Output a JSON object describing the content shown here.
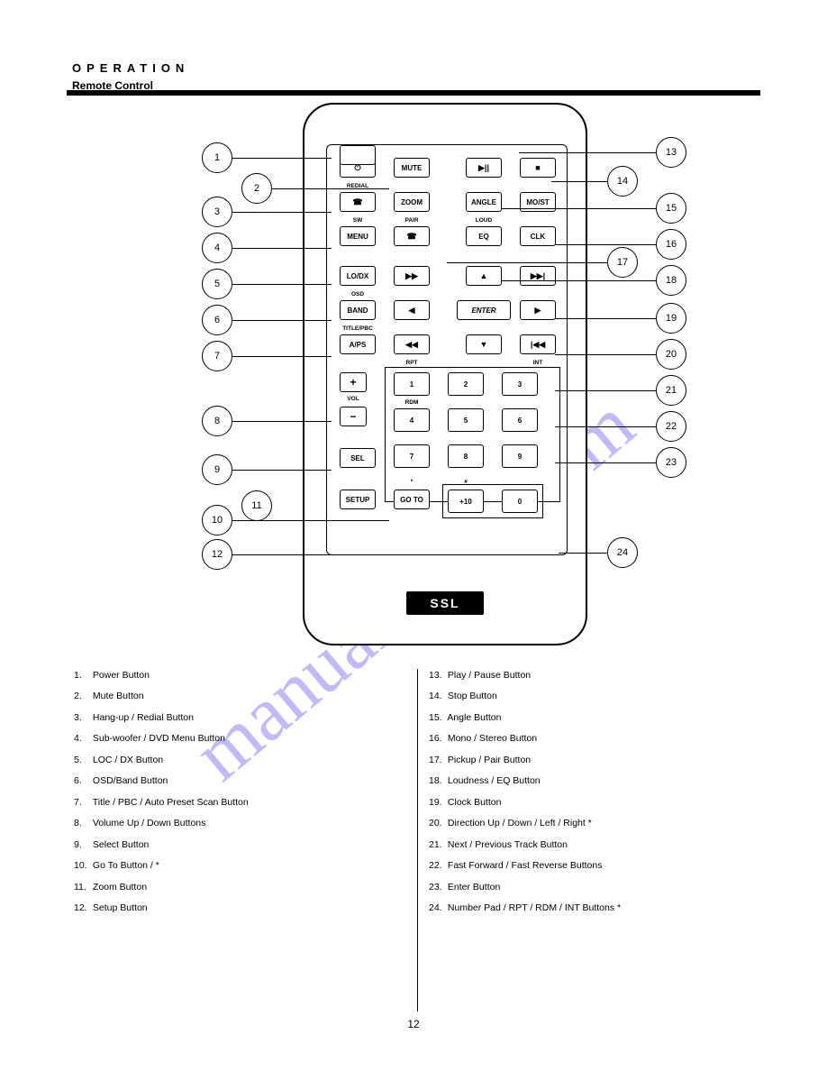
{
  "page": {
    "title": "OPERATION",
    "section": "Remote Control",
    "page_number": "12"
  },
  "watermark": "manualshive.com",
  "brand": "SSL",
  "remote": {
    "buttons": {
      "r1": {
        "power": "⏻",
        "mute": "MUTE",
        "playpause": "▶||",
        "stop": "■"
      },
      "r1_lbl": {
        "redial": "REDIAL"
      },
      "r2": {
        "hang": "☎",
        "zoom": "ZOOM",
        "angle": "ANGLE",
        "most": "MO/ST"
      },
      "r2_lbl": {
        "sw": "SW",
        "pair": "PAIR",
        "loud": "LOUD"
      },
      "r3": {
        "menu": "MENU",
        "pickup": "☎",
        "eq": "EQ",
        "clk": "CLK"
      },
      "r4": {
        "lodx": "LO/DX",
        "ff": "▶▶",
        "up": "▲",
        "next": "▶▶|"
      },
      "r4_lbl": {
        "osd": "OSD"
      },
      "r5": {
        "band": "BAND",
        "left": "◀",
        "enter": "ENTER",
        "right": "▶"
      },
      "r5_lbl": {
        "titlepbc": "TITLE/PBC"
      },
      "r6": {
        "aps": "A/PS",
        "rw": "◀◀",
        "down": "▼",
        "prev": "|◀◀"
      },
      "r6_lbl": {
        "rpt": "RPT",
        "int": "INT"
      },
      "vol": {
        "plus": "+",
        "minus": "−",
        "label": "VOL"
      },
      "sel": "SEL",
      "setup": "SETUP",
      "goto": {
        "label": "GO TO",
        "star": "*",
        "hash": "#"
      },
      "plus10": "+10",
      "kp": {
        "1": "1",
        "2": "2",
        "3": "3",
        "4": "4",
        "5": "5",
        "6": "6",
        "7": "7",
        "8": "8",
        "9": "9",
        "0": "0",
        "rdm": "RDM"
      }
    }
  },
  "callouts": {
    "left": [
      "1",
      "2",
      "3",
      "4",
      "5",
      "6",
      "7",
      "8",
      "9",
      "10",
      "11",
      "12"
    ],
    "right_upper": [
      "13",
      "14",
      "15",
      "16",
      "17",
      "18"
    ],
    "right_lower": [
      "19",
      "20",
      "21",
      "22",
      "23",
      "24"
    ]
  },
  "text_left": [
    {
      "n": "1",
      "t": "Power Button"
    },
    {
      "n": "2",
      "t": "Mute Button"
    },
    {
      "n": "3",
      "t": "  Hang-up / Redial Button"
    },
    {
      "n": "4",
      "t": "Sub-woofer / DVD Menu Button"
    },
    {
      "n": "5",
      "t": "LOC / DX Button"
    },
    {
      "n": "6",
      "t": "OSD/Band Button"
    },
    {
      "n": "7",
      "t": "Title / PBC / Auto Preset Scan Button"
    },
    {
      "n": "8",
      "t": "Volume Up / Down Buttons"
    },
    {
      "n": "9",
      "t": "Select Button"
    },
    {
      "n": "10",
      "t": "Go To Button /   *"
    },
    {
      "n": "11",
      "t": "Zoom Button"
    },
    {
      "n": "12",
      "t": "Setup Button"
    }
  ],
  "text_right": [
    {
      "n": "13",
      "t": "Play / Pause Button"
    },
    {
      "n": "14",
      "t": "Stop Button"
    },
    {
      "n": "15",
      "t": "Angle Button"
    },
    {
      "n": "16",
      "t": "Mono / Stereo Button"
    },
    {
      "n": "17",
      "t": "  Pickup / Pair Button"
    },
    {
      "n": "18",
      "t": "Loudness / EQ Button"
    },
    {
      "n": "19",
      "t": "Clock Button"
    },
    {
      "n": "20",
      "t": "Direction Up / Down / Left / Right   *"
    },
    {
      "n": "21",
      "t": "Next / Previous Track Button"
    },
    {
      "n": "22",
      "t": "Fast Forward / Fast Reverse Buttons"
    },
    {
      "n": "23",
      "t": "Enter Button"
    },
    {
      "n": "24",
      "t": "Number Pad / RPT / RDM / INT Buttons   *"
    }
  ]
}
